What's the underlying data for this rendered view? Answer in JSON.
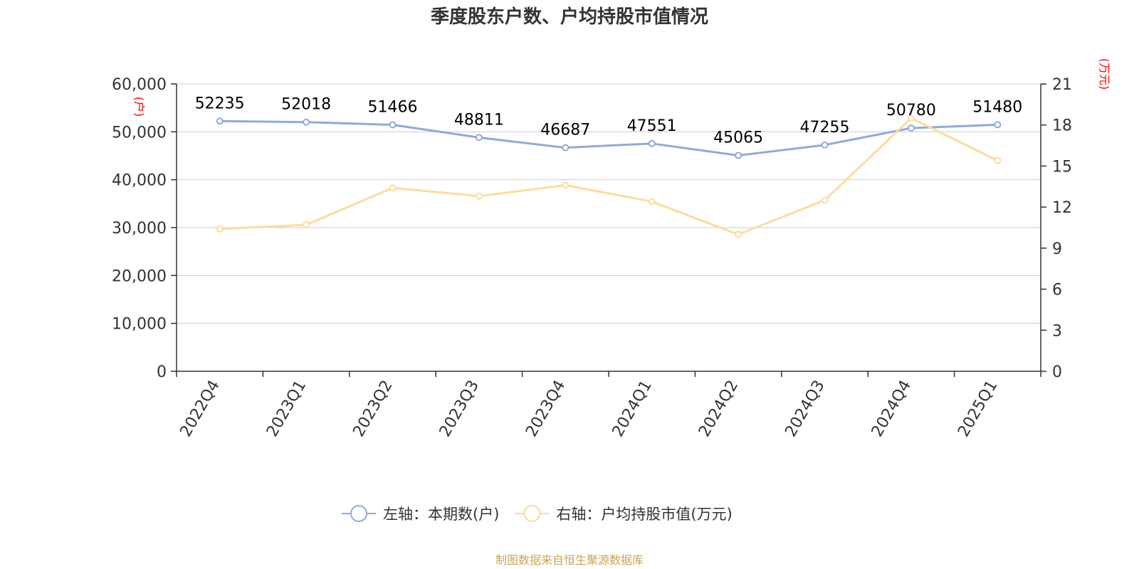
{
  "chart_data": {
    "type": "line",
    "title": "季度股东户数、户均持股市值情况",
    "categories": [
      "2022Q4",
      "2023Q1",
      "2023Q2",
      "2023Q3",
      "2023Q4",
      "2024Q1",
      "2024Q2",
      "2024Q3",
      "2024Q4",
      "2025Q1"
    ],
    "series": [
      {
        "name": "左轴：本期数(户)",
        "axis": "left",
        "color": "#8eaadb",
        "values": [
          52235,
          52018,
          51466,
          48811,
          46687,
          47551,
          45065,
          47255,
          50780,
          51480
        ],
        "show_labels": true
      },
      {
        "name": "右轴：户均持股市值(万元)",
        "axis": "right",
        "color": "#fddc9c",
        "values": [
          10.4,
          10.7,
          13.4,
          12.8,
          13.6,
          12.4,
          10.0,
          12.5,
          18.5,
          15.4
        ],
        "show_labels": false
      }
    ],
    "y_left": {
      "unit": "(户)",
      "ylim": [
        0,
        60000
      ],
      "ticks": [
        "0",
        "10,000",
        "20,000",
        "30,000",
        "40,000",
        "50,000",
        "60,000"
      ]
    },
    "y_right": {
      "unit": "(万元)",
      "ylim": [
        0,
        21
      ],
      "ticks": [
        "0",
        "3",
        "6",
        "9",
        "12",
        "15",
        "18",
        "21"
      ]
    },
    "grid": true,
    "legend_position": "bottom",
    "source": "制图数据来自恒生聚源数据库"
  }
}
